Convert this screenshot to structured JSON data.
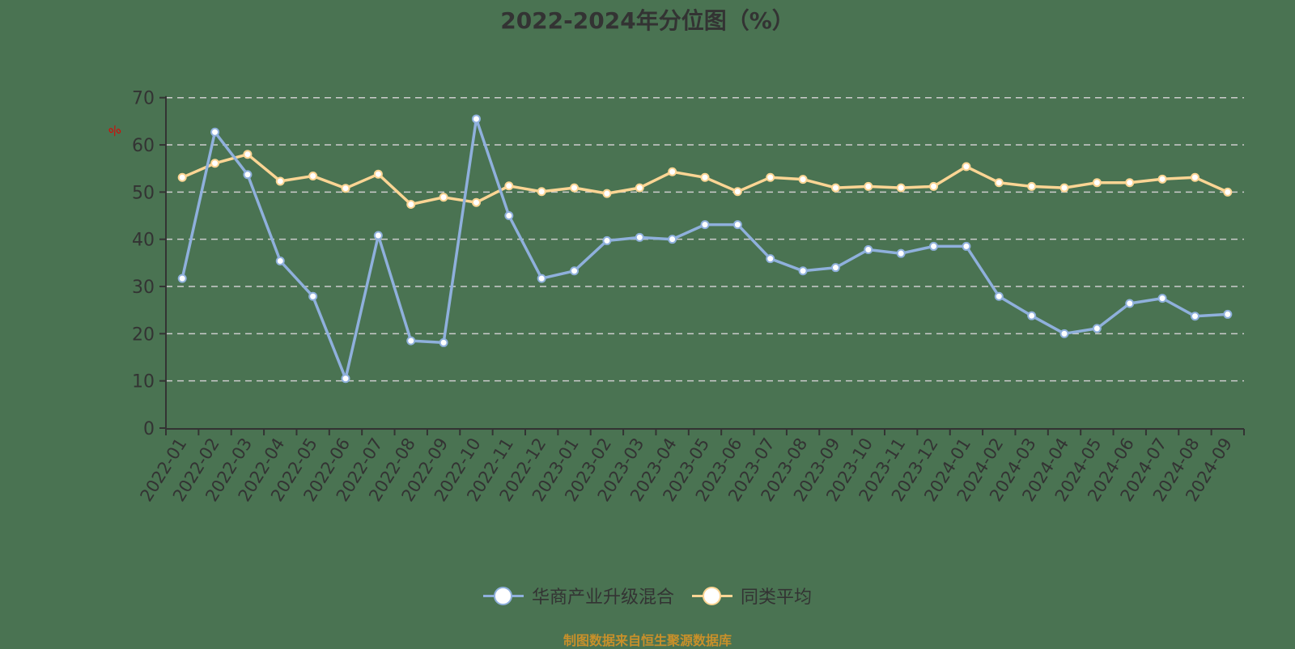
{
  "title": "2022-2024年分位图（%）",
  "footer": "制图数据来自恒生聚源数据库",
  "colors": {
    "background": "#4a7352",
    "series_1": "#8fb0dc",
    "series_2": "#fcd594",
    "axis": "#333333",
    "grid": "#cccccc",
    "unit_label": "#e00000",
    "footer": "#c8902a"
  },
  "legend": [
    {
      "label": "华商产业升级混合",
      "color": "#8fb0dc"
    },
    {
      "label": "同类平均",
      "color": "#fcd594"
    }
  ],
  "chart_data": {
    "type": "line",
    "title": "2022-2024年分位图（%）",
    "xlabel": "",
    "ylabel": "%",
    "ylim": [
      0,
      70
    ],
    "yticks": [
      0,
      10,
      20,
      30,
      40,
      50,
      60,
      70
    ],
    "grid": true,
    "legend_position": "bottom",
    "categories": [
      "2022-01",
      "2022-02",
      "2022-03",
      "2022-04",
      "2022-05",
      "2022-06",
      "2022-07",
      "2022-08",
      "2022-09",
      "2022-10",
      "2022-11",
      "2022-12",
      "2023-01",
      "2023-02",
      "2023-03",
      "2023-04",
      "2023-05",
      "2023-06",
      "2023-07",
      "2023-08",
      "2023-09",
      "2023-10",
      "2023-11",
      "2023-12",
      "2024-01",
      "2024-02",
      "2024-03",
      "2024-04",
      "2024-05",
      "2024-06",
      "2024-07",
      "2024-08",
      "2024-09"
    ],
    "series": [
      {
        "name": "华商产业升级混合",
        "values": [
          31.7,
          62.7,
          53.7,
          35.4,
          27.9,
          10.5,
          40.8,
          18.5,
          18.1,
          65.5,
          45.0,
          31.7,
          33.3,
          39.7,
          40.4,
          40.0,
          43.1,
          43.1,
          35.9,
          33.3,
          34.0,
          37.8,
          37.0,
          38.5,
          38.5,
          27.9,
          23.8,
          20.0,
          21.1,
          26.4,
          27.5,
          23.7,
          24.1
        ]
      },
      {
        "name": "同类平均",
        "values": [
          53.1,
          56.1,
          58.0,
          52.3,
          53.4,
          50.8,
          53.8,
          47.4,
          48.9,
          47.8,
          51.3,
          50.1,
          50.9,
          49.7,
          50.9,
          54.3,
          53.1,
          50.1,
          53.1,
          52.7,
          50.9,
          51.2,
          50.9,
          51.2,
          55.4,
          52.0,
          51.2,
          50.9,
          52.0,
          52.0,
          52.75,
          53.1,
          50.0
        ]
      }
    ]
  }
}
